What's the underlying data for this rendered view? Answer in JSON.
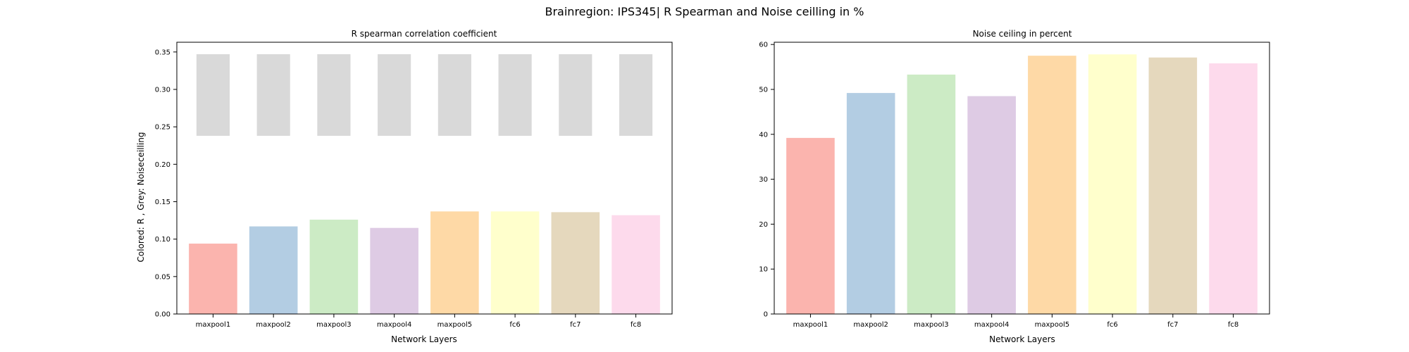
{
  "figure": {
    "suptitle": "Brainregion: IPS345| R Spearman and Noise ceilling in %"
  },
  "colors": [
    "#fbb4ae",
    "#b3cde3",
    "#ccebc5",
    "#decbe4",
    "#fed9a6",
    "#ffffcc",
    "#e5d8bd",
    "#fddaec"
  ],
  "noise_bar_color": "#d9d9d9",
  "chart_data": [
    {
      "type": "bar",
      "title": "R spearman correlation coefficient",
      "xlabel": "Network Layers",
      "ylabel": "Colored: R , Grey: Noiseceilling",
      "categories": [
        "maxpool1",
        "maxpool2",
        "maxpool3",
        "maxpool4",
        "maxpool5",
        "fc6",
        "fc7",
        "fc8"
      ],
      "series": [
        {
          "values": [
            0.094,
            0.117,
            0.126,
            0.115,
            0.137,
            0.137,
            0.136,
            0.132
          ]
        }
      ],
      "noise_ceiling": {
        "lower": 0.238,
        "upper": 0.347
      },
      "ylim": [
        0,
        0.363
      ],
      "yticks": [
        0.0,
        0.05,
        0.1,
        0.15,
        0.2,
        0.25,
        0.3,
        0.35
      ],
      "ytick_labels": [
        "0.00",
        "0.05",
        "0.10",
        "0.15",
        "0.20",
        "0.25",
        "0.30",
        "0.35"
      ],
      "grid": false
    },
    {
      "type": "bar",
      "title": "Noise ceiling in percent",
      "xlabel": "Network Layers",
      "ylabel": "",
      "categories": [
        "maxpool1",
        "maxpool2",
        "maxpool3",
        "maxpool4",
        "maxpool5",
        "fc6",
        "fc7",
        "fc8"
      ],
      "series": [
        {
          "values": [
            39.2,
            49.2,
            53.3,
            48.5,
            57.5,
            57.8,
            57.1,
            55.8
          ]
        }
      ],
      "ylim": [
        0,
        60.5
      ],
      "yticks": [
        0,
        10,
        20,
        30,
        40,
        50,
        60
      ],
      "ytick_labels": [
        "0",
        "10",
        "20",
        "30",
        "40",
        "50",
        "60"
      ],
      "grid": false
    }
  ]
}
